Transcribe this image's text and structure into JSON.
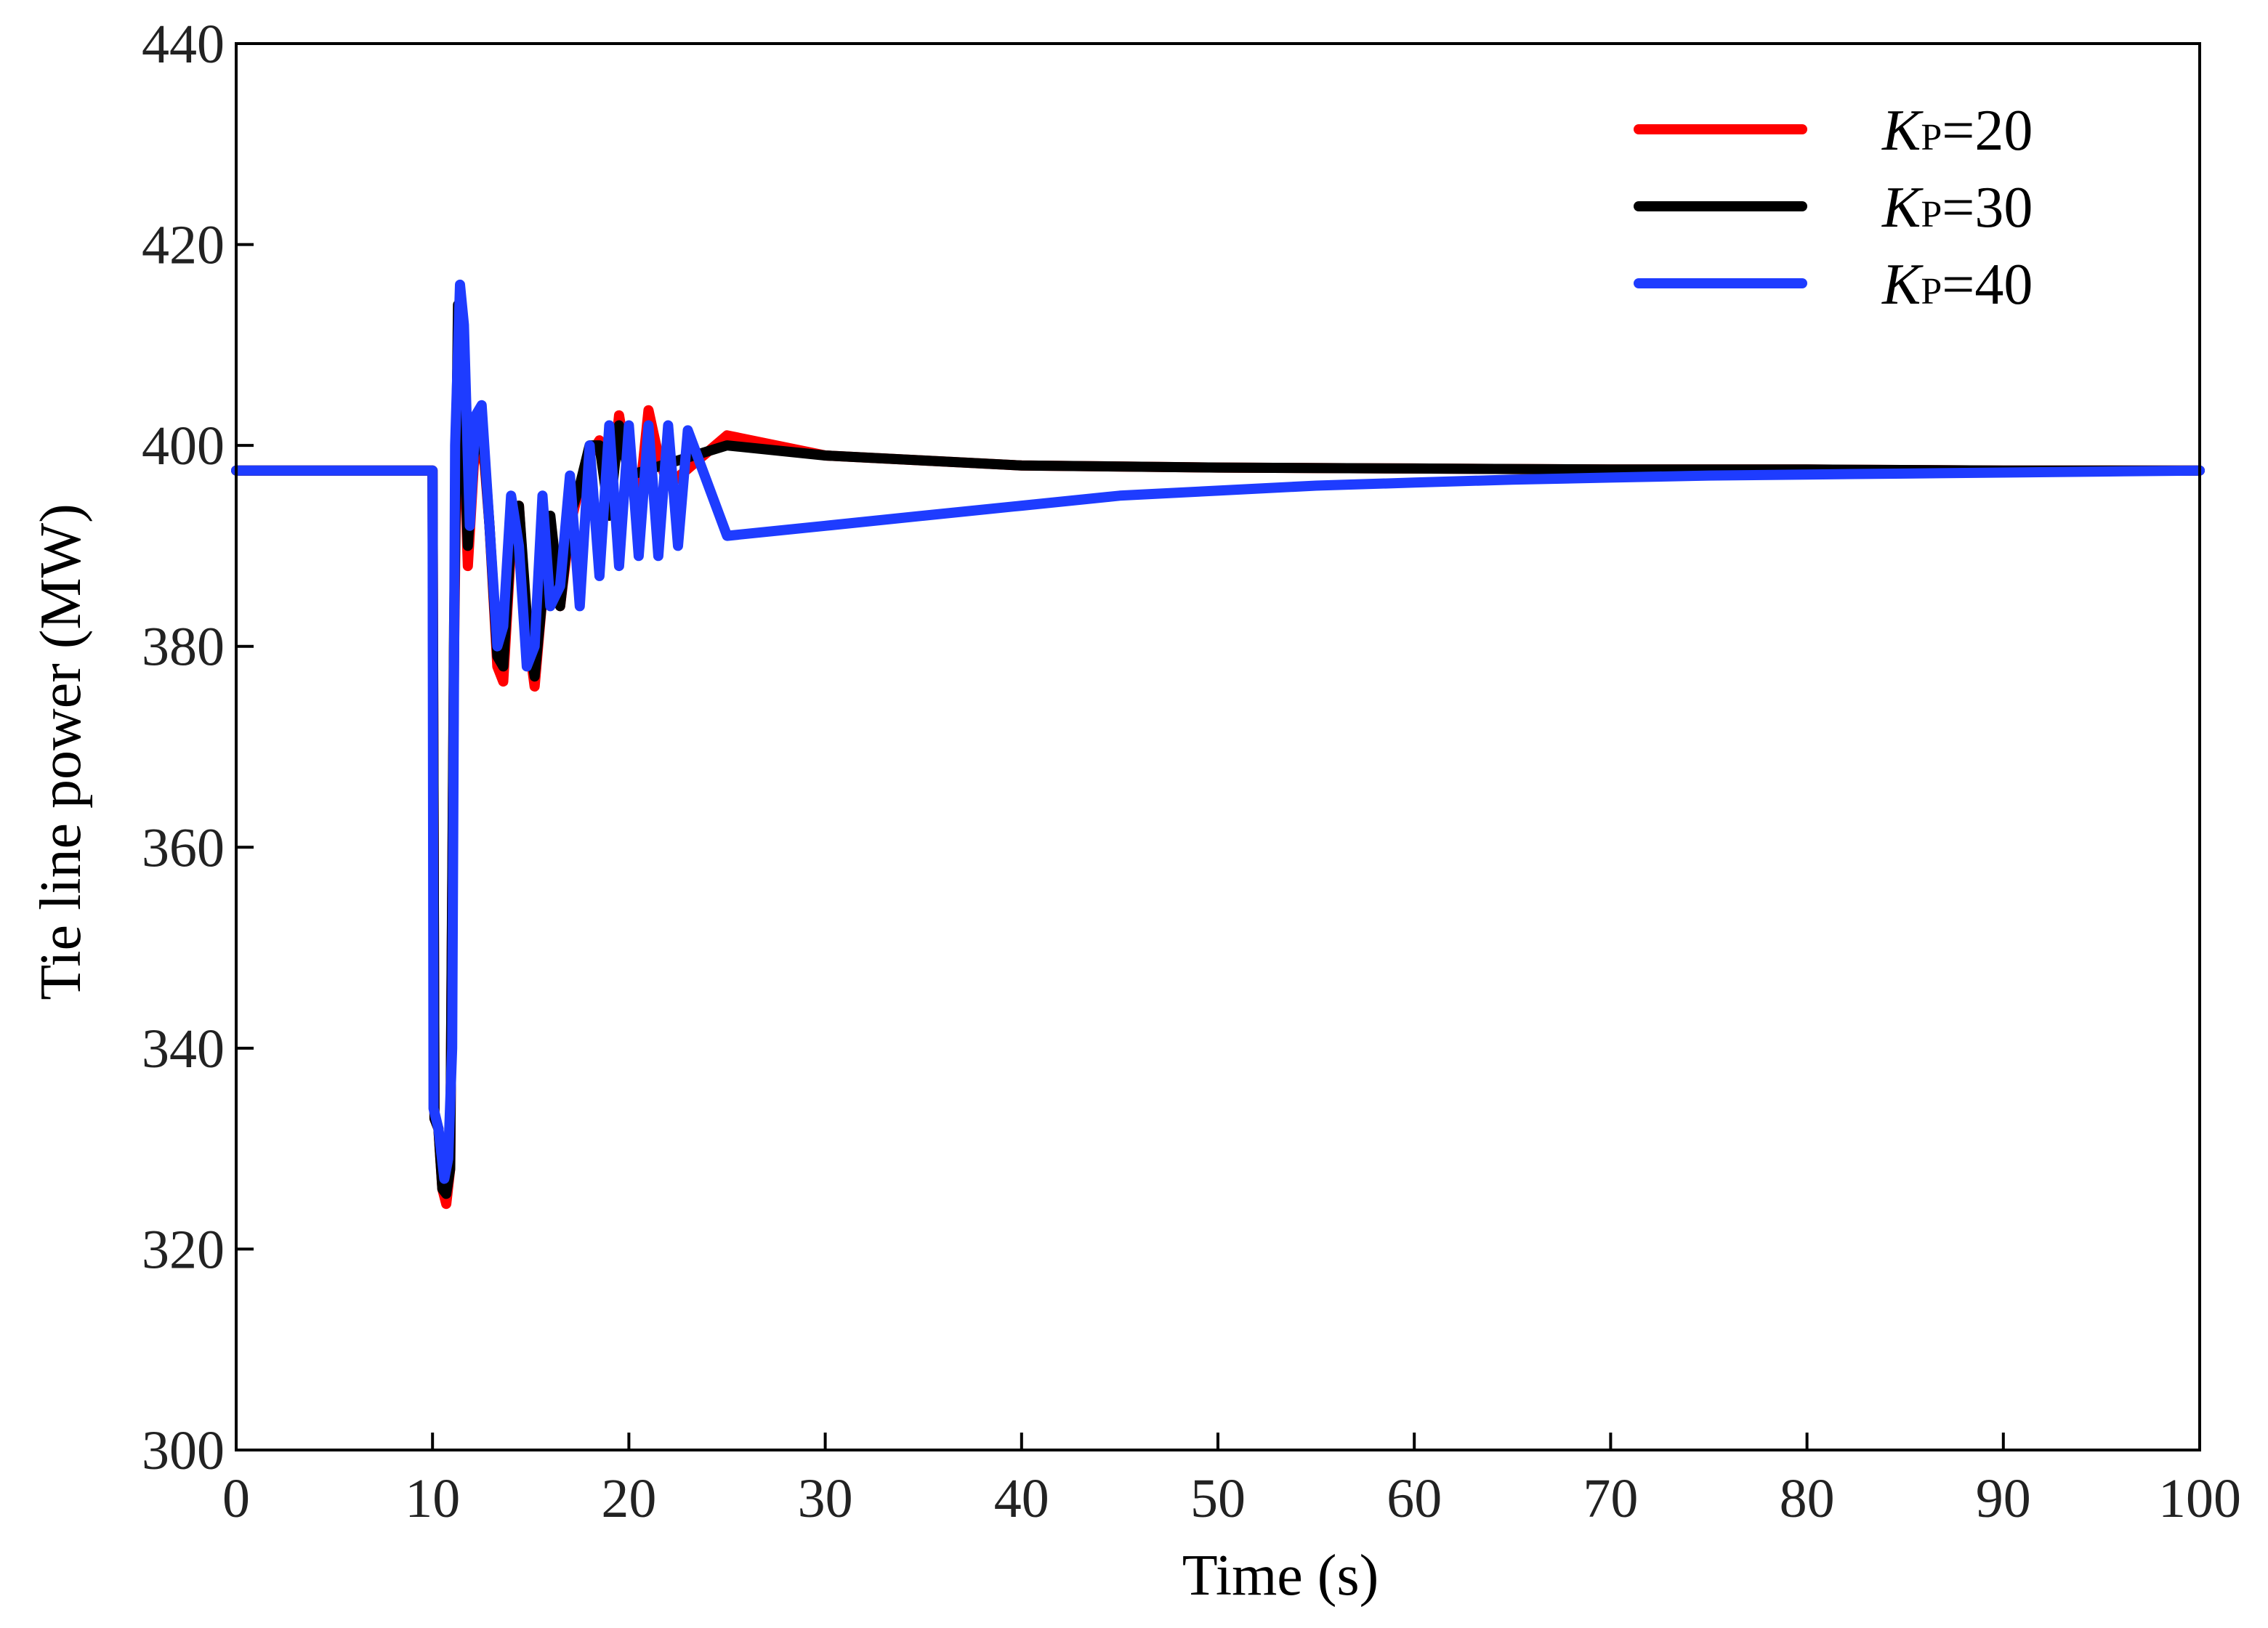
{
  "chart_data": {
    "type": "line",
    "title": "",
    "xlabel": "Time (s)",
    "ylabel": "Tie line power (MW)",
    "xlim": [
      0,
      100
    ],
    "ylim": [
      300,
      440
    ],
    "x_ticks": [
      0,
      10,
      20,
      30,
      40,
      50,
      60,
      70,
      80,
      90,
      100
    ],
    "y_ticks": [
      300,
      320,
      340,
      360,
      380,
      400,
      420,
      440
    ],
    "grid": false,
    "legend_position": "top-right",
    "series": [
      {
        "name": "KP=20",
        "legend_symbol": "K",
        "legend_subscript": "P",
        "legend_value": "=20",
        "color": "#ff0000",
        "x": [
          0,
          10,
          10.1,
          10.3,
          10.5,
          10.7,
          10.9,
          11.1,
          11.3,
          11.5,
          11.8,
          12.1,
          12.5,
          12.9,
          13.3,
          13.6,
          14.0,
          14.4,
          14.8,
          15.2,
          15.6,
          16.0,
          16.5,
          17.0,
          17.5,
          18.0,
          18.5,
          19.0,
          19.5,
          20,
          20.5,
          21,
          21.5,
          22,
          25,
          30,
          35,
          40,
          50,
          60,
          70,
          80,
          90,
          100
        ],
        "y": [
          397.5,
          397.5,
          333,
          332,
          326,
          324.5,
          328,
          380,
          412,
          406,
          388,
          398,
          402,
          392,
          378,
          376.5,
          390,
          394,
          382,
          376,
          385,
          392,
          384,
          392,
          396,
          399,
          400.5,
          393,
          403,
          397,
          394,
          403.5,
          399,
          396,
          401,
          399,
          398.5,
          398,
          397.8,
          397.7,
          397.6,
          397.6,
          397.5,
          397.5
        ]
      },
      {
        "name": "KP=30",
        "legend_symbol": "K",
        "legend_subscript": "P",
        "legend_value": "=30",
        "color": "#000000",
        "x": [
          0,
          10,
          10.1,
          10.3,
          10.5,
          10.7,
          10.9,
          11.1,
          11.3,
          11.5,
          11.8,
          12.1,
          12.5,
          12.9,
          13.3,
          13.6,
          14.0,
          14.4,
          14.8,
          15.2,
          15.6,
          16.0,
          16.5,
          17.0,
          17.5,
          18.0,
          18.5,
          19.0,
          19.5,
          20,
          25,
          30,
          35,
          40,
          50,
          60,
          70,
          80,
          90,
          100
        ],
        "y": [
          397.5,
          397.5,
          333,
          332,
          326,
          325.5,
          328,
          382,
          414,
          406,
          390,
          399,
          403,
          392,
          379,
          378,
          391,
          394,
          383,
          377,
          385,
          393,
          384,
          393,
          396,
          400,
          400,
          393,
          402,
          397,
          400,
          399,
          398.5,
          398,
          397.8,
          397.7,
          397.6,
          397.6,
          397.5,
          397.5
        ]
      },
      {
        "name": "KP=40",
        "legend_symbol": "K",
        "legend_subscript": "P",
        "legend_value": "=40",
        "color": "#1e3cff",
        "x": [
          0,
          10,
          10.05,
          10.3,
          10.6,
          10.8,
          11.0,
          11.15,
          11.4,
          11.6,
          11.9,
          12.2,
          12.5,
          12.9,
          13.3,
          13.6,
          14.0,
          14.4,
          14.8,
          15.2,
          15.6,
          16.0,
          16.5,
          17.0,
          17.5,
          18.0,
          18.5,
          19.0,
          19.5,
          20,
          20.5,
          21,
          21.5,
          22,
          22.5,
          23,
          25,
          30,
          35,
          40,
          45,
          50,
          55,
          60,
          65,
          70,
          75,
          80,
          85,
          90,
          95,
          100
        ],
        "y": [
          397.5,
          397.5,
          334,
          332,
          327,
          329,
          340,
          400,
          416,
          412,
          392,
          403,
          404,
          392,
          380,
          382,
          395,
          390,
          378,
          380,
          395,
          384,
          386,
          397,
          384,
          400,
          387,
          402,
          388,
          402,
          389,
          402,
          389,
          402,
          390,
          401.5,
          391,
          392,
          393,
          394,
          395,
          395.5,
          396,
          396.3,
          396.6,
          396.8,
          397,
          397.1,
          397.2,
          397.3,
          397.4,
          397.5
        ]
      }
    ]
  }
}
